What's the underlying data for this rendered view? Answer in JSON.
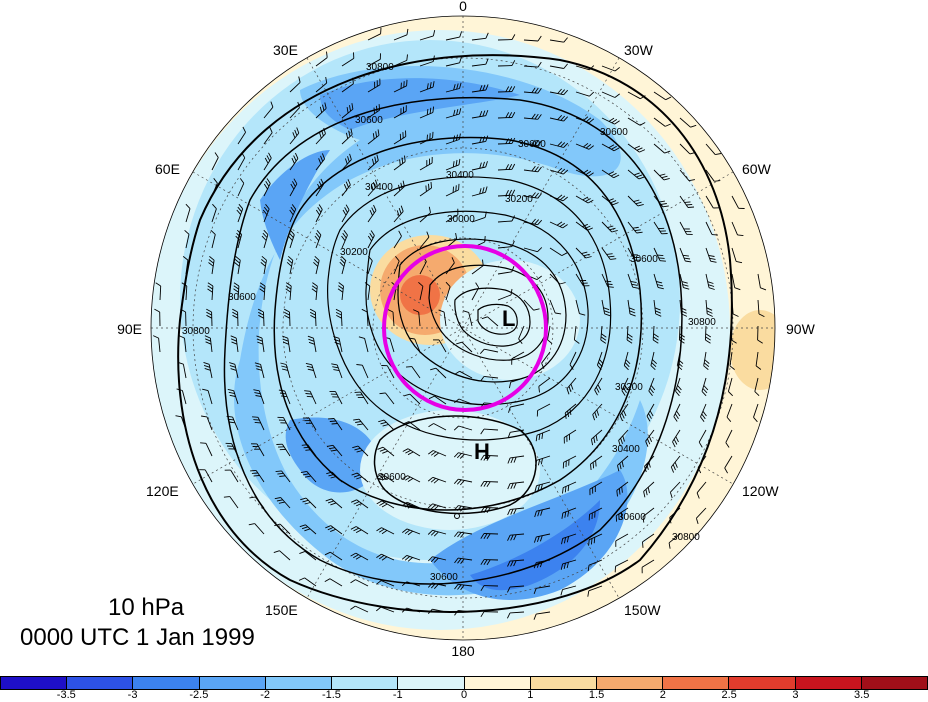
{
  "longitude_labels": {
    "top": "0",
    "bottom": "180",
    "left": "90E",
    "right": "90W",
    "upper_left_1": "30E",
    "upper_left_2": "60E",
    "lower_left_1": "120E",
    "lower_left_2": "150E",
    "upper_right_1": "30W",
    "upper_right_2": "60W",
    "lower_right_1": "120W",
    "lower_right_2": "150W"
  },
  "contour_labels": [
    "30800",
    "30600",
    "30600",
    "30600",
    "30400",
    "30400",
    "30200",
    "30000",
    "30200",
    "30600",
    "30800",
    "30600",
    "30800",
    "30200",
    "30400",
    "30600",
    "30600",
    "30800",
    "30600",
    "30600",
    "30600",
    "30400",
    "30600",
    "30800"
  ],
  "pressure_centers": {
    "low": "L",
    "high": "H"
  },
  "caption": {
    "level": "10 hPa",
    "time": "0000 UTC 1 Jan 1999"
  },
  "colorbar": {
    "ticks": [
      "-3.5",
      "-3",
      "-2.5",
      "-2",
      "-1.5",
      "-1",
      "0",
      "1",
      "1.5",
      "2",
      "2.5",
      "3",
      "3.5"
    ],
    "colors": [
      "#1e0fc8",
      "#2d52e6",
      "#3c82ef",
      "#5aa5f5",
      "#82c8fa",
      "#b4e6fa",
      "#dcf5fa",
      "#fff5d7",
      "#fadca0",
      "#f5aa6e",
      "#f07346",
      "#e13c2d",
      "#c8141e",
      "#a00f19"
    ]
  },
  "highlight_circle_color": "#e600e6"
}
